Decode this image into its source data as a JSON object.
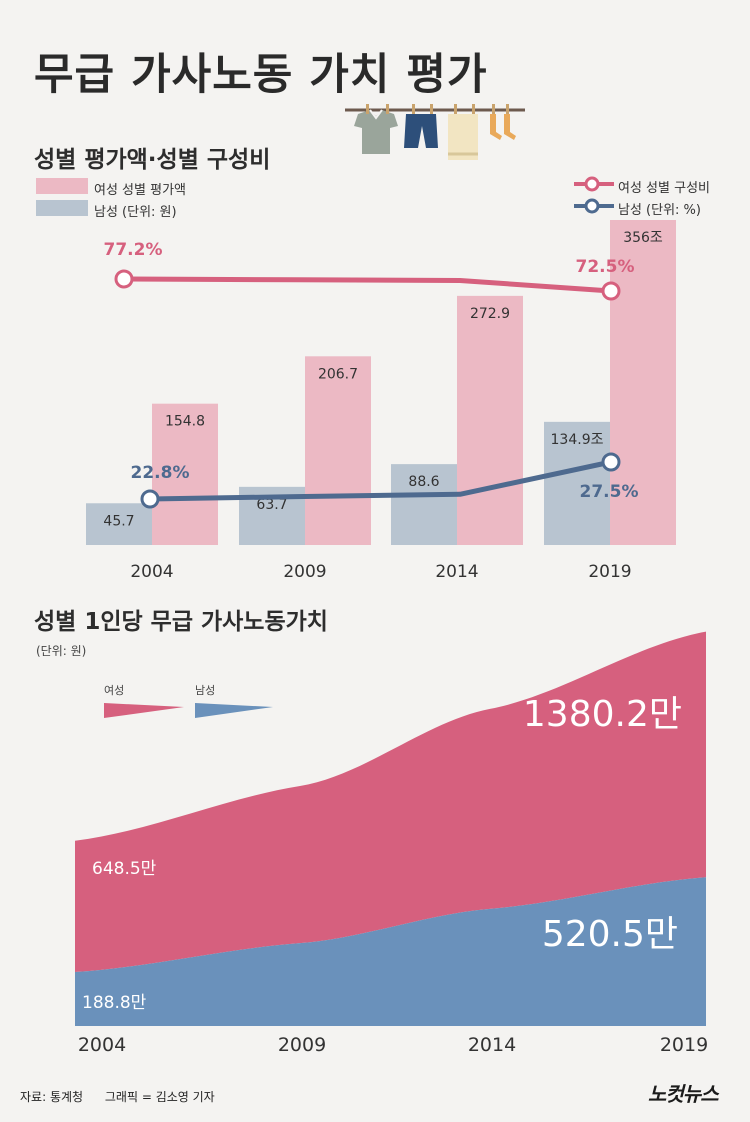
{
  "title": "무급 가사노동 가치 평가",
  "chart1": {
    "subtitle": "성별 평가액·성별 구성비",
    "legend_bars": {
      "female": "여성  성별 평가액",
      "male": "남성  (단위: 원)"
    },
    "legend_lines": {
      "female": "여성  성별 구성비",
      "male": "남성  (단위: %)"
    }
  },
  "chart2": {
    "subtitle": "성별 1인당 무급 가사노동가치",
    "unit": "(단위: 원)",
    "legend_female": "여성",
    "legend_male": "남성"
  },
  "footer": {
    "source": "자료: 통계청",
    "graphic": "그래픽 = 김소영 기자",
    "logo": "노컷뉴스"
  },
  "colors": {
    "female_bar": "#ecb9c4",
    "male_bar": "#b8c4d0",
    "female_line": "#d6607e",
    "male_line": "#4e6a8f",
    "female_area": "#d6607e",
    "male_area": "#6a91bb"
  },
  "chart_data": [
    {
      "type": "bar",
      "categories": [
        "2004",
        "2009",
        "2014",
        "2019"
      ],
      "series": [
        {
          "name": "여성",
          "values": [
            154.8,
            206.7,
            272.9,
            356
          ]
        },
        {
          "name": "남성",
          "values": [
            45.7,
            63.7,
            88.6,
            134.9
          ]
        }
      ],
      "value_labels": {
        "female": [
          "154.8",
          "206.7",
          "272.9",
          "356조"
        ],
        "male": [
          "45.7",
          "63.7",
          "88.6",
          "134.9조"
        ]
      },
      "unit": "조 원",
      "overlay_lines": {
        "type": "line",
        "series": [
          {
            "name": "여성",
            "values": [
              77.2,
              76.9,
              76.6,
              72.5
            ],
            "labels": [
              "77.2%",
              "",
              "",
              "72.5%"
            ]
          },
          {
            "name": "남성",
            "values": [
              22.8,
              23.1,
              23.4,
              27.5
            ],
            "labels": [
              "22.8%",
              "",
              "",
              "27.5%"
            ]
          }
        ],
        "unit": "%"
      }
    },
    {
      "type": "area",
      "x": [
        "2004",
        "2009",
        "2014",
        "2019"
      ],
      "series": [
        {
          "name": "여성",
          "values": [
            648.5,
            840,
            1110,
            1380.2
          ],
          "labels": [
            "648.5만",
            "",
            "",
            "1380.2만"
          ]
        },
        {
          "name": "남성",
          "values": [
            188.8,
            290,
            410,
            520.5
          ],
          "labels": [
            "188.8만",
            "",
            "",
            "520.5만"
          ]
        }
      ],
      "unit": "만 원",
      "stacked": true
    }
  ]
}
